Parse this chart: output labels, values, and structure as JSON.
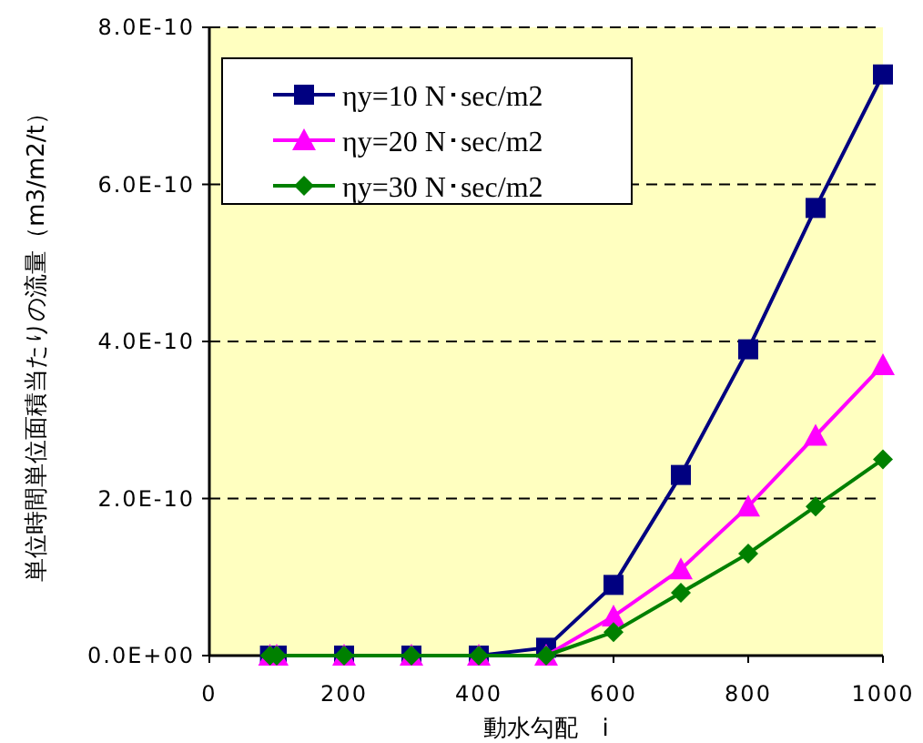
{
  "chart_data": {
    "type": "line",
    "xlabel": "動水勾配　i",
    "ylabel": "単位時間単位面積当たりの流量（m3/m2/t）",
    "x": [
      90,
      100,
      200,
      300,
      400,
      500,
      600,
      700,
      800,
      900,
      1000
    ],
    "series": [
      {
        "name": "ηy=10 N･sec/m2",
        "color": "#000080",
        "marker": "square",
        "values": [
          0,
          0,
          0,
          0,
          0,
          1e-11,
          9e-11,
          2.3e-10,
          3.9e-10,
          5.7e-10,
          7.4e-10
        ]
      },
      {
        "name": "ηy=20 N･sec/m2",
        "color": "#ff00ff",
        "marker": "triangle",
        "values": [
          0,
          0,
          0,
          0,
          0,
          0,
          5e-11,
          1.1e-10,
          1.9e-10,
          2.8e-10,
          3.7e-10
        ]
      },
      {
        "name": "ηy=30 N･sec/m2",
        "color": "#008000",
        "marker": "diamond",
        "values": [
          0,
          0,
          0,
          0,
          0,
          0,
          3e-11,
          8e-11,
          1.3e-10,
          1.9e-10,
          2.5e-10
        ]
      }
    ],
    "xlim": [
      0,
      1000
    ],
    "xticks": [
      0,
      200,
      400,
      600,
      800,
      1000
    ],
    "ylim": [
      0,
      8e-10
    ],
    "yticks": [
      {
        "value": 0,
        "label": "0.0E+00"
      },
      {
        "value": 2e-10,
        "label": "2.0E-10"
      },
      {
        "value": 4e-10,
        "label": "4.0E-10"
      },
      {
        "value": 6e-10,
        "label": "6.0E-10"
      },
      {
        "value": 8e-10,
        "label": "8.0E-10"
      }
    ],
    "grid": "y",
    "legend": "top left",
    "line_style": "solid"
  }
}
